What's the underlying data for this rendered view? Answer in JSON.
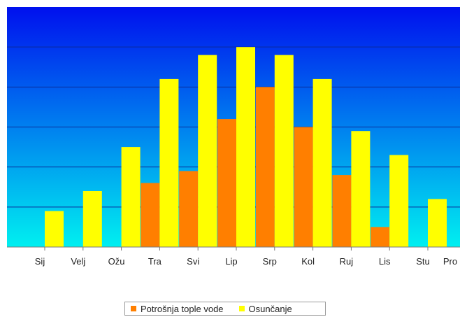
{
  "chart_data": {
    "type": "bar",
    "categories": [
      "Sij",
      "Velj",
      "Ožu",
      "Tra",
      "Svi",
      "Lip",
      "Srp",
      "Kol",
      "Ruj",
      "Lis",
      "Stu",
      "Pro"
    ],
    "series": [
      {
        "name": "Potrošnja tople vode",
        "values": [
          0,
          0,
          0,
          16,
          19,
          32,
          40,
          30,
          18,
          5,
          0,
          0
        ]
      },
      {
        "name": "Osunčanje",
        "values": [
          9,
          14,
          25,
          42,
          48,
          50,
          48,
          42,
          29,
          23,
          12,
          5
        ]
      }
    ],
    "title": "",
    "xlabel": "",
    "ylabel": "",
    "ylim": [
      0,
      60
    ],
    "grid": true,
    "legend_position": "bottom",
    "colors": {
      "series": [
        "#ff7f00",
        "#ffff00"
      ],
      "background_top": "#0010ee",
      "background_bottom": "#00f0f0",
      "gridline": "#0a2a9a"
    }
  }
}
